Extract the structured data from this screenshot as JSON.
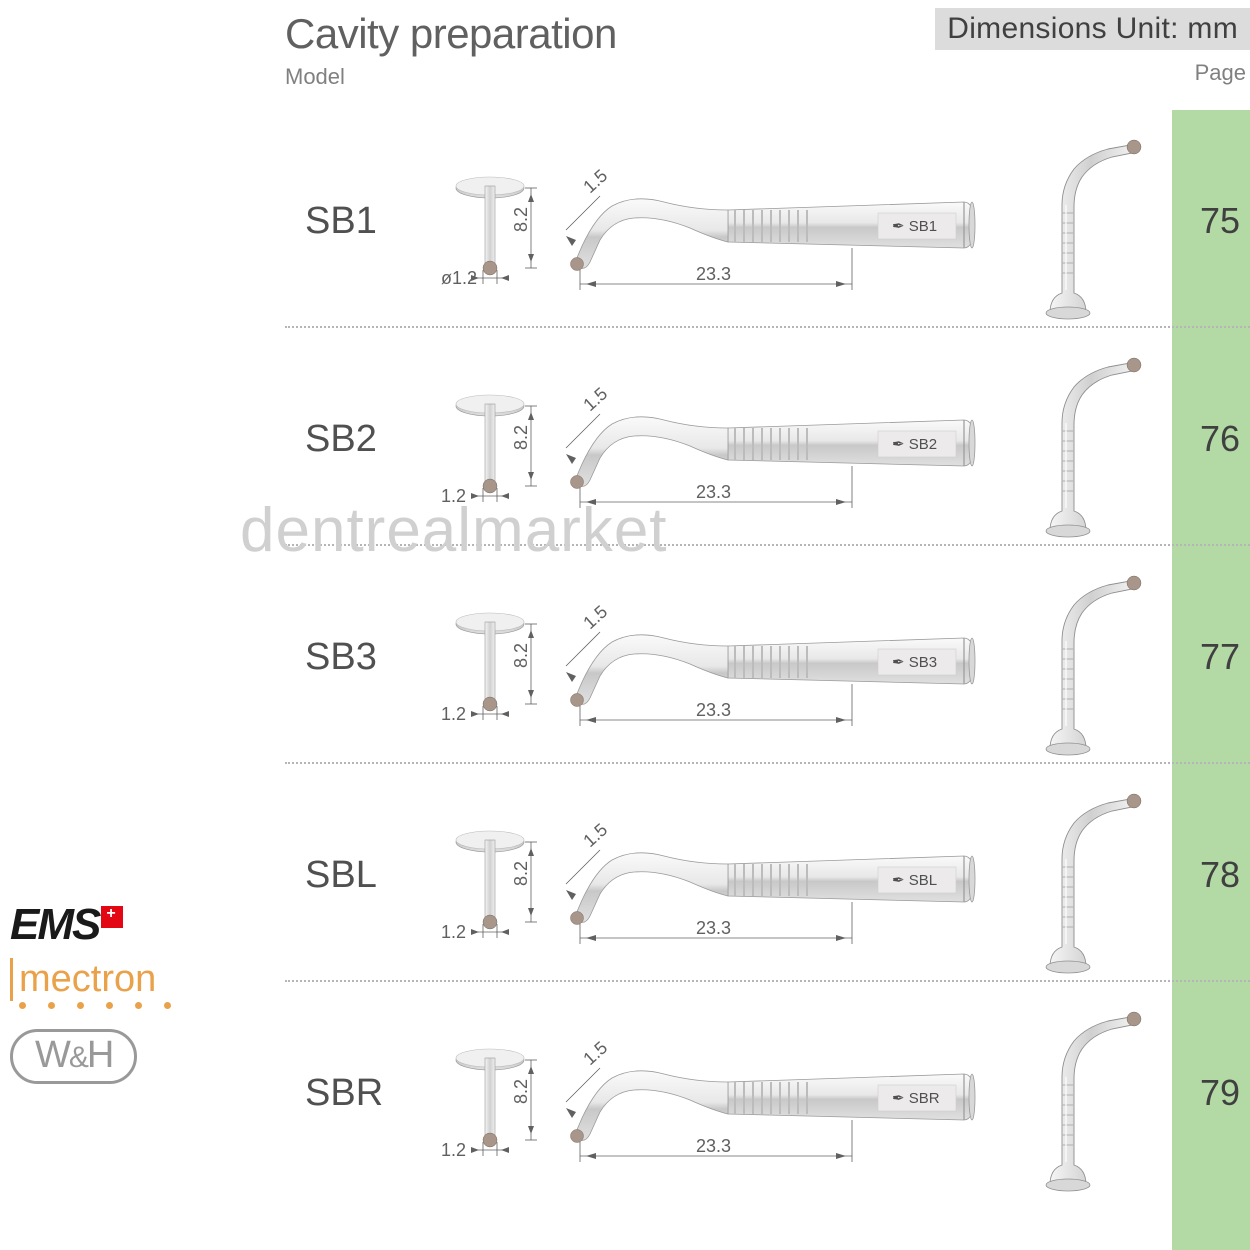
{
  "header": {
    "title": "Cavity preparation",
    "model_label": "Model",
    "dimensions_label": "Dimensions Unit: mm",
    "page_label": "Page"
  },
  "green_strip_color": "#b3d9a5",
  "dim_box_bg": "#dcdcdc",
  "watermark_text": "dentrealmarket",
  "rows": [
    {
      "model": "SB1",
      "page": "75",
      "diameter": "ø1.2",
      "height": "8.2",
      "tip_angle": "1.5",
      "length": "23.3",
      "handle_label": "SB1"
    },
    {
      "model": "SB2",
      "page": "76",
      "diameter": "1.2",
      "height": "8.2",
      "tip_angle": "1.5",
      "length": "23.3",
      "handle_label": "SB2"
    },
    {
      "model": "SB3",
      "page": "77",
      "diameter": "1.2",
      "height": "8.2",
      "tip_angle": "1.5",
      "length": "23.3",
      "handle_label": "SB3"
    },
    {
      "model": "SBL",
      "page": "78",
      "diameter": "1.2",
      "height": "8.2",
      "tip_angle": "1.5",
      "length": "23.3",
      "handle_label": "SBL"
    },
    {
      "model": "SBR",
      "page": "79",
      "diameter": "1.2",
      "height": "8.2",
      "tip_angle": "1.5",
      "length": "23.3",
      "handle_label": "SBR"
    }
  ],
  "logos": {
    "ems": "EMS",
    "mectron": "mectron",
    "wh": "W&H"
  },
  "colors": {
    "title": "#606060",
    "subtext": "#808080",
    "model_text": "#505050",
    "page_text": "#404040",
    "metal_light": "#f2f2f2",
    "metal_dark": "#b8b8b8",
    "ball": "#a8968a",
    "dim_line": "#606060"
  }
}
